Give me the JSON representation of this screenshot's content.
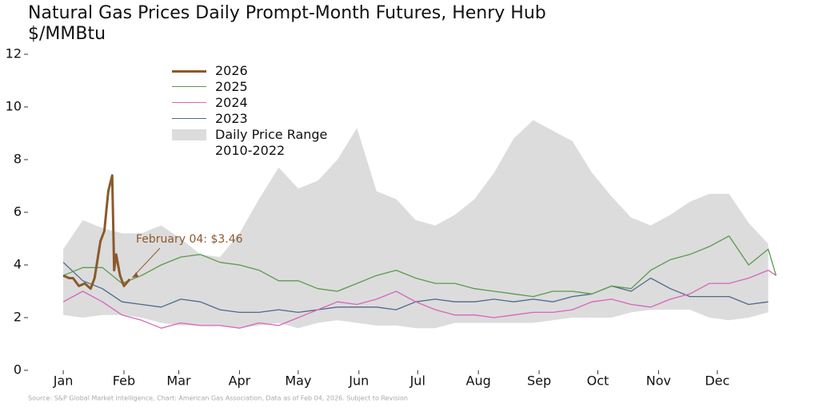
{
  "chart_data": {
    "type": "line",
    "title": "Natural Gas Prices Daily Prompt-Month Futures, Henry Hub",
    "subtitle": "$/MMBtu",
    "source": "Source: S&P Global Market Intelligence, Chart: American Gas Association, Data as of Feb 04, 2026. Subject to Revision",
    "xlim": [
      -18,
      370
    ],
    "xticks": [
      {
        "value": 0,
        "label": "Jan"
      },
      {
        "value": 31,
        "label": "Feb"
      },
      {
        "value": 59,
        "label": "Mar"
      },
      {
        "value": 90,
        "label": "Apr"
      },
      {
        "value": 120,
        "label": "May"
      },
      {
        "value": 151,
        "label": "Jun"
      },
      {
        "value": 181,
        "label": "Jul"
      },
      {
        "value": 212,
        "label": "Aug"
      },
      {
        "value": 243,
        "label": "Sep"
      },
      {
        "value": 273,
        "label": "Oct"
      },
      {
        "value": 304,
        "label": "Nov"
      },
      {
        "value": 334,
        "label": "Dec"
      }
    ],
    "ylim": [
      0,
      12
    ],
    "yticks": [
      0,
      2,
      4,
      6,
      8,
      10,
      12
    ],
    "series": [
      {
        "name": "2026",
        "color": "#8b5a2b",
        "x": [
          0,
          3,
          5,
          8,
          11,
          14,
          16,
          19,
          21,
          23,
          25,
          26,
          27,
          29,
          31,
          34
        ],
        "values": [
          3.6,
          3.5,
          3.5,
          3.2,
          3.3,
          3.1,
          3.5,
          4.9,
          5.3,
          6.8,
          7.4,
          3.8,
          4.4,
          3.6,
          3.2,
          3.46
        ]
      },
      {
        "name": "2025",
        "color": "#5a9a4a",
        "x": [
          0,
          10,
          20,
          30,
          40,
          50,
          60,
          70,
          80,
          90,
          100,
          110,
          120,
          130,
          140,
          150,
          160,
          170,
          180,
          190,
          200,
          210,
          220,
          230,
          240,
          250,
          260,
          270,
          280,
          290,
          300,
          310,
          320,
          330,
          340,
          350,
          360,
          364
        ],
        "values": [
          3.6,
          3.9,
          3.9,
          3.3,
          3.6,
          4.0,
          4.3,
          4.4,
          4.1,
          4.0,
          3.8,
          3.4,
          3.4,
          3.1,
          3.0,
          3.3,
          3.6,
          3.8,
          3.5,
          3.3,
          3.3,
          3.1,
          3.0,
          2.9,
          2.8,
          3.0,
          3.0,
          2.9,
          3.2,
          3.1,
          3.8,
          4.2,
          4.4,
          4.7,
          5.1,
          4.0,
          4.6,
          3.6
        ]
      },
      {
        "name": "2024",
        "color": "#d765b8",
        "x": [
          0,
          10,
          20,
          30,
          40,
          50,
          60,
          70,
          80,
          90,
          100,
          110,
          120,
          130,
          140,
          150,
          160,
          170,
          180,
          190,
          200,
          210,
          220,
          230,
          240,
          250,
          260,
          270,
          280,
          290,
          300,
          310,
          320,
          330,
          340,
          350,
          360,
          364
        ],
        "values": [
          2.6,
          3.0,
          2.6,
          2.1,
          1.9,
          1.6,
          1.8,
          1.7,
          1.7,
          1.6,
          1.8,
          1.7,
          2.0,
          2.3,
          2.6,
          2.5,
          2.7,
          3.0,
          2.6,
          2.3,
          2.1,
          2.1,
          2.0,
          2.1,
          2.2,
          2.2,
          2.3,
          2.6,
          2.7,
          2.5,
          2.4,
          2.7,
          2.9,
          3.3,
          3.3,
          3.5,
          3.8,
          3.6
        ]
      },
      {
        "name": "2023",
        "color": "#4d6a8a",
        "x": [
          0,
          10,
          20,
          30,
          40,
          50,
          60,
          70,
          80,
          90,
          100,
          110,
          120,
          130,
          140,
          150,
          160,
          170,
          180,
          190,
          200,
          210,
          220,
          230,
          240,
          250,
          260,
          270,
          280,
          290,
          300,
          310,
          320,
          330,
          340,
          350,
          360
        ],
        "values": [
          4.1,
          3.4,
          3.1,
          2.6,
          2.5,
          2.4,
          2.7,
          2.6,
          2.3,
          2.2,
          2.2,
          2.3,
          2.2,
          2.3,
          2.4,
          2.4,
          2.4,
          2.3,
          2.6,
          2.7,
          2.6,
          2.6,
          2.7,
          2.6,
          2.7,
          2.6,
          2.8,
          2.9,
          3.2,
          3.0,
          3.5,
          3.1,
          2.8,
          2.8,
          2.8,
          2.5,
          2.6
        ]
      }
    ],
    "band": {
      "name": "Daily Price Range\n2010-2022",
      "color": "#dcdcdd",
      "x": [
        0,
        10,
        20,
        30,
        40,
        50,
        60,
        70,
        80,
        90,
        100,
        110,
        120,
        130,
        140,
        150,
        160,
        170,
        180,
        190,
        200,
        210,
        220,
        230,
        240,
        250,
        260,
        270,
        280,
        290,
        300,
        310,
        320,
        330,
        340,
        350,
        360
      ],
      "high": [
        4.6,
        5.7,
        5.4,
        5.2,
        5.2,
        5.5,
        5.0,
        4.4,
        4.3,
        5.2,
        6.5,
        7.7,
        6.9,
        7.2,
        8.0,
        9.2,
        6.8,
        6.5,
        5.7,
        5.5,
        5.9,
        6.5,
        7.5,
        8.8,
        9.5,
        9.1,
        8.7,
        7.5,
        6.6,
        5.8,
        5.5,
        5.9,
        6.4,
        6.7,
        6.7,
        5.6,
        4.8
      ],
      "low": [
        2.1,
        2.0,
        2.1,
        2.1,
        2.0,
        1.8,
        1.7,
        1.7,
        1.7,
        1.6,
        1.7,
        1.8,
        1.6,
        1.8,
        1.9,
        1.8,
        1.7,
        1.7,
        1.6,
        1.6,
        1.8,
        1.8,
        1.8,
        1.8,
        1.8,
        1.9,
        2.0,
        2.0,
        2.0,
        2.2,
        2.3,
        2.3,
        2.3,
        2.0,
        1.9,
        2.0,
        2.2
      ]
    },
    "annotation": {
      "text": "February 04: $3.46",
      "color": "#8b5a2b"
    }
  }
}
